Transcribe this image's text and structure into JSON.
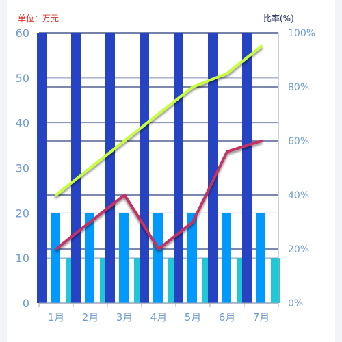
{
  "units": {
    "left": "单位：万元",
    "right": "比率(%)"
  },
  "chart_data": {
    "type": "bar",
    "categories": [
      "1月",
      "2月",
      "3月",
      "4月",
      "5月",
      "6月",
      "7月"
    ],
    "y_left": {
      "ylim": [
        0,
        60
      ],
      "ticks": [
        0,
        10,
        20,
        30,
        40,
        50,
        60
      ]
    },
    "y_right": {
      "ylim": [
        0,
        100
      ],
      "ticks": [
        "0%",
        "20%",
        "40%",
        "60%",
        "80%",
        "100%"
      ]
    },
    "bar_series": [
      {
        "values": [
          60,
          60,
          60,
          60,
          60,
          60,
          60
        ],
        "color": "#2643c4"
      },
      {
        "values": [
          20,
          20,
          20,
          20,
          20,
          20,
          20
        ],
        "color": "#0099ff"
      },
      {
        "values": [
          10,
          10,
          10,
          10,
          10,
          10,
          10
        ],
        "color": "#1fc8d4"
      }
    ],
    "line_series": [
      {
        "values": [
          40,
          50,
          60,
          70,
          80,
          85,
          95
        ],
        "color": "#c8ff3c",
        "axis": "right"
      },
      {
        "values": [
          20,
          30,
          40,
          20,
          30,
          56,
          60
        ],
        "color": "#c43364",
        "axis": "right"
      }
    ],
    "colors": {
      "axis_text": "#6f9bd1",
      "grid": "#1a2b6b",
      "left_unit": "#e0312b",
      "right_unit": "#222b5c"
    },
    "grid": true
  }
}
